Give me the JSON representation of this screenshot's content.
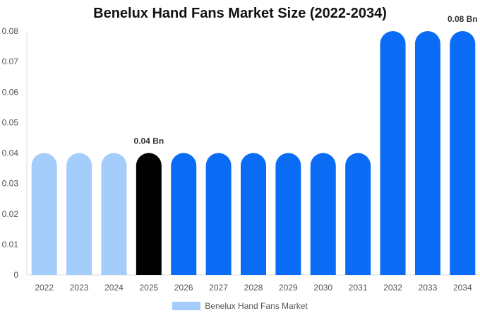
{
  "chart_data": {
    "type": "bar",
    "title": "Benelux Hand Fans Market Size (2022-2034)",
    "categories": [
      "2022",
      "2023",
      "2024",
      "2025",
      "2026",
      "2027",
      "2028",
      "2029",
      "2030",
      "2031",
      "2032",
      "2033",
      "2034"
    ],
    "series": [
      {
        "name": "Benelux Hand Fans Market",
        "values": [
          0.04,
          0.04,
          0.04,
          0.04,
          0.04,
          0.04,
          0.04,
          0.04,
          0.04,
          0.04,
          0.08,
          0.08,
          0.08
        ]
      }
    ],
    "y_ticks": [
      "0",
      "0.01",
      "0.02",
      "0.03",
      "0.04",
      "0.05",
      "0.06",
      "0.07",
      "0.08"
    ],
    "ylim": [
      0,
      0.08
    ],
    "data_labels": [
      {
        "category": "2025",
        "text": "0.04 Bn"
      },
      {
        "category": "2034",
        "text": "0.08 Bn"
      }
    ],
    "bar_colors": {
      "historical": "#a4cdfb",
      "base_year": "#000000",
      "forecast": "#0a6cf5"
    },
    "bar_color_groups": [
      "historical",
      "historical",
      "historical",
      "base_year",
      "forecast",
      "forecast",
      "forecast",
      "forecast",
      "forecast",
      "forecast",
      "forecast",
      "forecast",
      "forecast"
    ],
    "grid": false,
    "legend_position": "bottom-center"
  }
}
